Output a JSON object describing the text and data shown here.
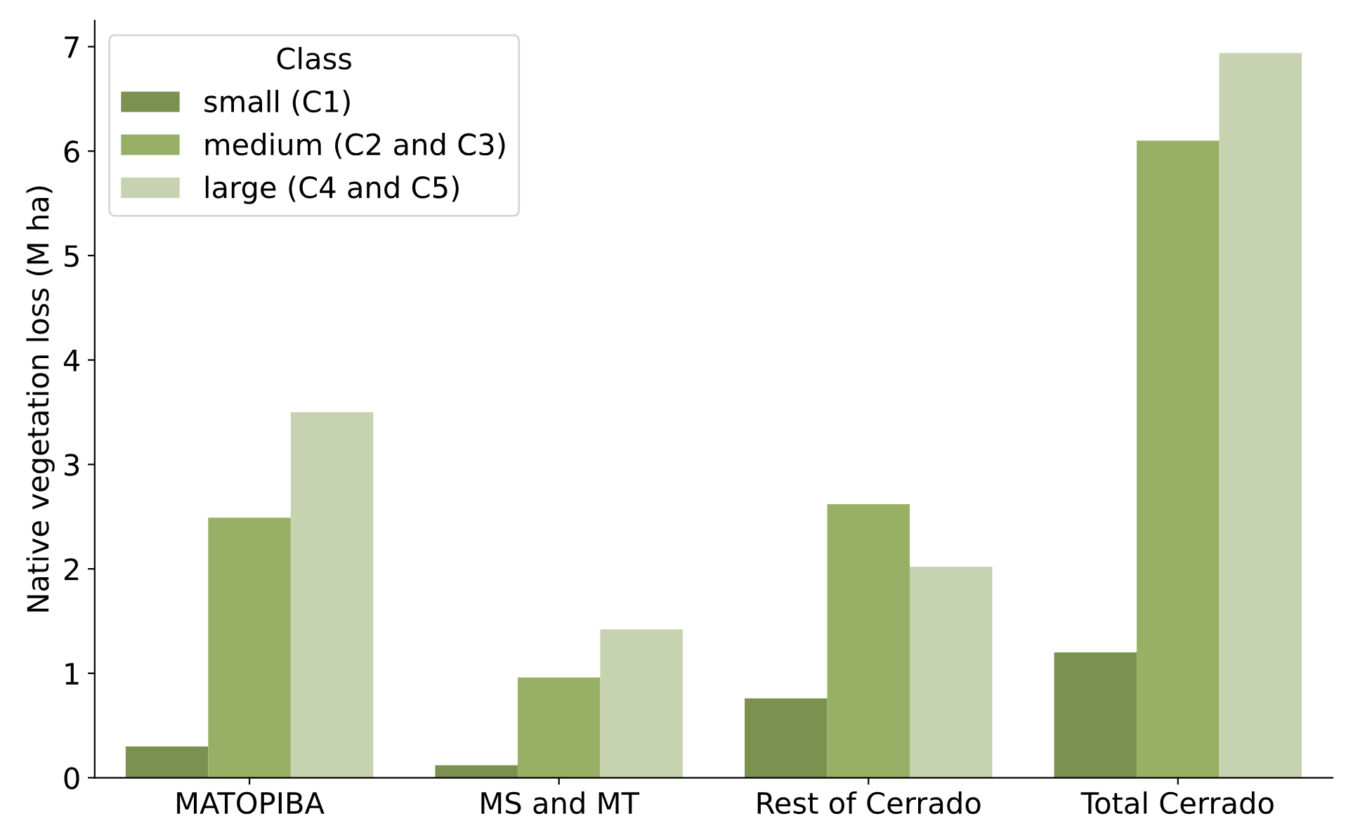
{
  "chart_data": {
    "type": "bar",
    "ylabel": "Native vegetation loss (M ha)",
    "categories": [
      "MATOPIBA",
      "MS and MT",
      "Rest of Cerrado",
      "Total Cerrado"
    ],
    "series": [
      {
        "name": "small (C1)",
        "color": "#7a9150",
        "values": [
          0.3,
          0.12,
          0.76,
          1.2
        ]
      },
      {
        "name": "medium (C2 and C3)",
        "color": "#98b065",
        "values": [
          2.49,
          0.96,
          2.62,
          6.1
        ]
      },
      {
        "name": "large (C4 and C5)",
        "color": "#c6d2b0",
        "values": [
          3.5,
          1.42,
          2.02,
          6.94
        ]
      }
    ],
    "legend_title": "Class",
    "legend": "top left",
    "ylim": [
      0,
      7.25
    ],
    "yticks": [
      0,
      1,
      2,
      3,
      4,
      5,
      6,
      7
    ],
    "grid": false
  }
}
